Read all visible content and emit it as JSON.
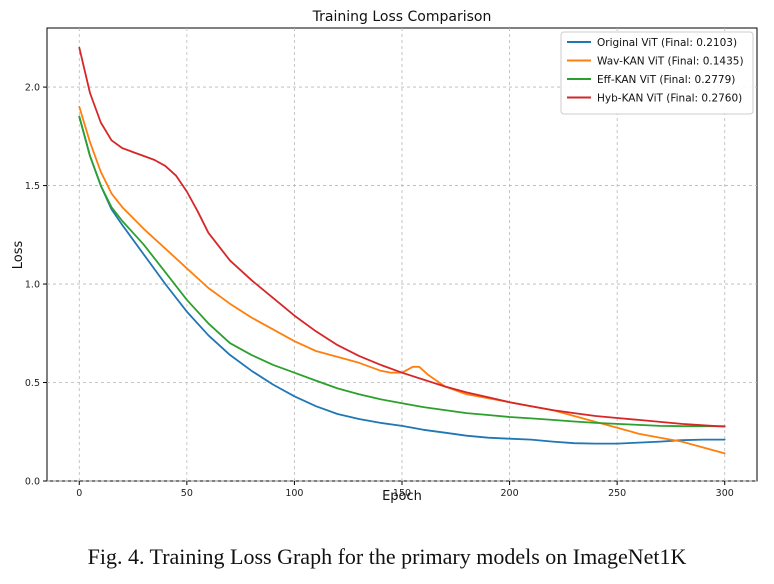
{
  "caption": "Fig. 4. Training Loss Graph for the primary models on ImageNet1K",
  "chart_data": {
    "type": "line",
    "title": "Training Loss Comparison",
    "xlabel": "Epoch",
    "ylabel": "Loss",
    "xlim": [
      -15,
      315
    ],
    "ylim": [
      0,
      2.3
    ],
    "xticks": [
      0,
      50,
      100,
      150,
      200,
      250,
      300
    ],
    "yticks": [
      0.0,
      0.5,
      1.0,
      1.5,
      2.0
    ],
    "grid": true,
    "legend_position": "top-right",
    "series": [
      {
        "name": "Original ViT (Final: 0.2103)",
        "color": "#1f77b4",
        "x": [
          0,
          5,
          10,
          15,
          20,
          30,
          40,
          50,
          60,
          70,
          80,
          90,
          100,
          110,
          120,
          130,
          140,
          150,
          160,
          170,
          180,
          190,
          200,
          210,
          220,
          230,
          240,
          250,
          260,
          270,
          280,
          290,
          300
        ],
        "y": [
          1.85,
          1.65,
          1.5,
          1.38,
          1.3,
          1.15,
          1.0,
          0.86,
          0.74,
          0.64,
          0.56,
          0.49,
          0.43,
          0.38,
          0.34,
          0.315,
          0.295,
          0.28,
          0.26,
          0.245,
          0.23,
          0.22,
          0.215,
          0.21,
          0.2,
          0.192,
          0.19,
          0.19,
          0.195,
          0.2,
          0.207,
          0.21,
          0.21
        ]
      },
      {
        "name": "Wav-KAN ViT  (Final: 0.1435)",
        "color": "#ff7f0e",
        "x": [
          0,
          5,
          10,
          15,
          20,
          30,
          40,
          50,
          60,
          70,
          80,
          90,
          100,
          110,
          120,
          130,
          140,
          145,
          150,
          155,
          158,
          162,
          170,
          180,
          190,
          200,
          210,
          220,
          230,
          240,
          250,
          260,
          270,
          280,
          290,
          300
        ],
        "y": [
          1.9,
          1.72,
          1.57,
          1.46,
          1.39,
          1.28,
          1.18,
          1.08,
          0.98,
          0.9,
          0.83,
          0.77,
          0.71,
          0.66,
          0.63,
          0.6,
          0.56,
          0.55,
          0.55,
          0.58,
          0.58,
          0.54,
          0.48,
          0.44,
          0.42,
          0.4,
          0.38,
          0.36,
          0.33,
          0.3,
          0.27,
          0.24,
          0.22,
          0.2,
          0.17,
          0.14
        ]
      },
      {
        "name": "Eff-KAN ViT (Final: 0.2779)",
        "color": "#2ca02c",
        "x": [
          0,
          5,
          10,
          15,
          20,
          30,
          40,
          50,
          60,
          70,
          80,
          90,
          100,
          110,
          120,
          130,
          140,
          150,
          160,
          170,
          180,
          190,
          200,
          210,
          220,
          230,
          240,
          250,
          260,
          270,
          280,
          290,
          300
        ],
        "y": [
          1.85,
          1.65,
          1.5,
          1.39,
          1.32,
          1.2,
          1.06,
          0.92,
          0.8,
          0.7,
          0.64,
          0.59,
          0.55,
          0.51,
          0.47,
          0.44,
          0.415,
          0.395,
          0.375,
          0.36,
          0.345,
          0.335,
          0.325,
          0.318,
          0.31,
          0.302,
          0.295,
          0.29,
          0.285,
          0.28,
          0.278,
          0.278,
          0.278
        ]
      },
      {
        "name": "Hyb-KAN ViT (Final: 0.2760)",
        "color": "#d62728",
        "x": [
          0,
          5,
          10,
          15,
          20,
          25,
          30,
          35,
          40,
          45,
          50,
          55,
          60,
          70,
          80,
          90,
          100,
          110,
          120,
          130,
          140,
          150,
          160,
          170,
          180,
          190,
          200,
          210,
          220,
          230,
          240,
          250,
          260,
          270,
          280,
          290,
          300
        ],
        "y": [
          2.2,
          1.97,
          1.82,
          1.73,
          1.69,
          1.67,
          1.65,
          1.63,
          1.6,
          1.55,
          1.47,
          1.37,
          1.26,
          1.12,
          1.02,
          0.93,
          0.84,
          0.76,
          0.69,
          0.635,
          0.59,
          0.55,
          0.515,
          0.48,
          0.45,
          0.425,
          0.4,
          0.38,
          0.36,
          0.345,
          0.33,
          0.32,
          0.31,
          0.3,
          0.29,
          0.283,
          0.276
        ]
      }
    ]
  }
}
